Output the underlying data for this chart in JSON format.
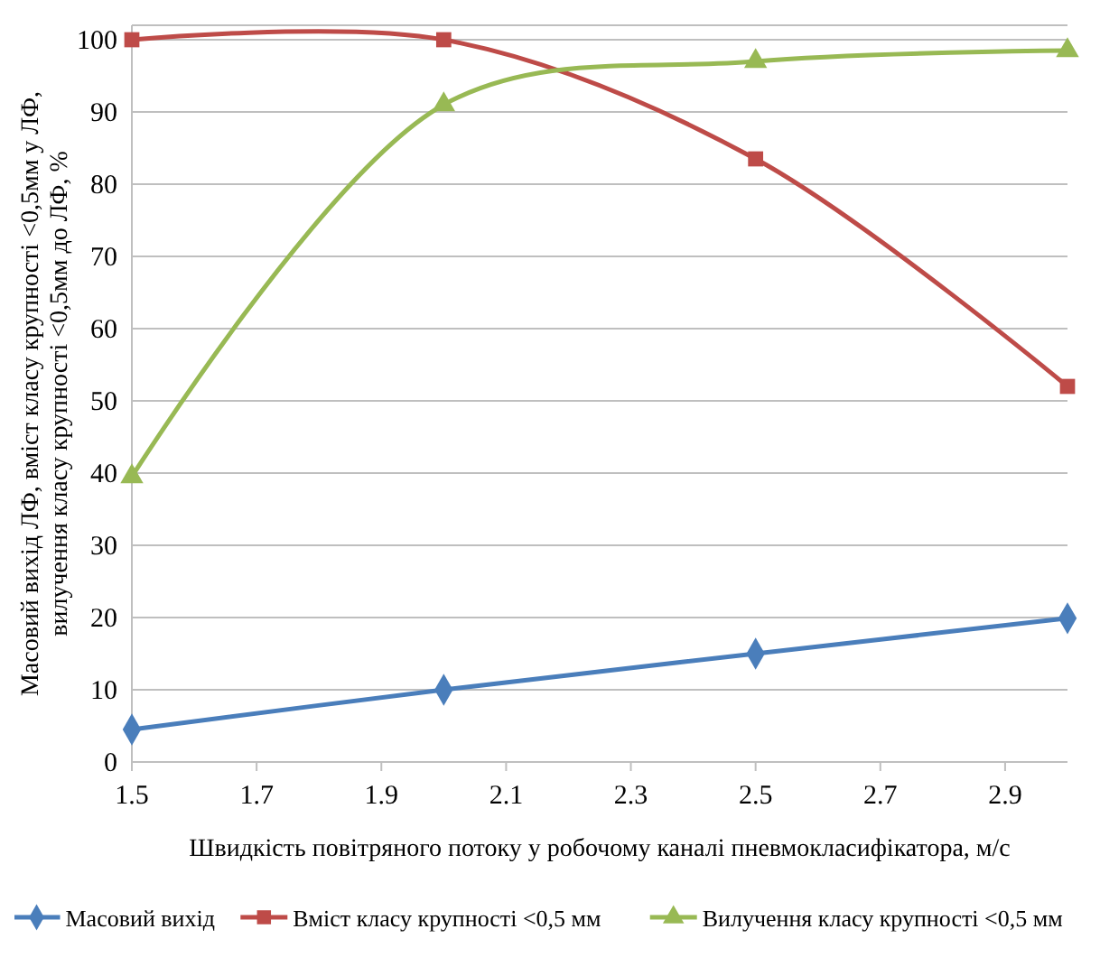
{
  "chart_data": {
    "type": "line",
    "xlabel": "Швидкість повітряного потоку у робочому каналі пневмокласифікатора, м/с",
    "ylabel": "Масовий вихід ЛФ, вміст класу крупності <0,5мм у ЛФ,\nвилучення класу крупності <0,5мм до ЛФ, %",
    "x": [
      1.5,
      2.0,
      2.5,
      3.0
    ],
    "xlim": [
      1.5,
      3.0
    ],
    "xticks": [
      1.5,
      1.7,
      1.9,
      2.1,
      2.3,
      2.5,
      2.7,
      2.9
    ],
    "ylim": [
      0,
      102
    ],
    "yticks": [
      0,
      10,
      20,
      30,
      40,
      50,
      60,
      70,
      80,
      90,
      100
    ],
    "grid": "y",
    "legend": "bottom",
    "series": [
      {
        "name": "Масовий вихід",
        "color": "#4a7ebb",
        "marker": "diamond",
        "values": [
          4.5,
          10,
          15,
          19.9
        ]
      },
      {
        "name": "Вміст класу крупності <0,5 мм",
        "color": "#be4b48",
        "marker": "square",
        "values": [
          100,
          100,
          83.5,
          52
        ]
      },
      {
        "name": "Вилучення класу крупності <0,5 мм",
        "color": "#98b954",
        "marker": "triangle",
        "values": [
          39.5,
          91,
          97,
          98.5
        ]
      }
    ]
  }
}
